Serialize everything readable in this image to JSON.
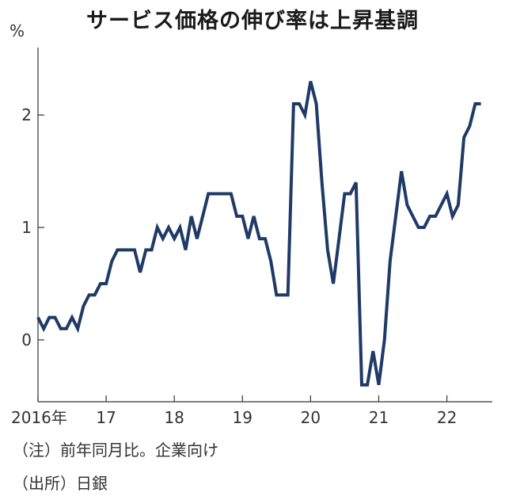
{
  "chart_data": {
    "type": "line",
    "title": "サービス価格の伸び率は上昇基調",
    "unit_label": "%",
    "xlabel": "",
    "ylabel": "",
    "xlim": [
      2016,
      2022.667
    ],
    "ylim": [
      -0.55,
      2.6
    ],
    "y_ticks": [
      0,
      1,
      2
    ],
    "x_ticks": [
      {
        "value": 2016,
        "label": "2016年"
      },
      {
        "value": 2017,
        "label": "17"
      },
      {
        "value": 2018,
        "label": "18"
      },
      {
        "value": 2019,
        "label": "19"
      },
      {
        "value": 2020,
        "label": "20"
      },
      {
        "value": 2021,
        "label": "21"
      },
      {
        "value": 2022,
        "label": "22"
      }
    ],
    "grid": false,
    "legend": "none",
    "line_color": "#1f3a66",
    "series": [
      {
        "x": [
          "2016-01",
          "2016-02",
          "2016-03",
          "2016-04",
          "2016-05",
          "2016-06",
          "2016-07",
          "2016-08",
          "2016-09",
          "2016-10",
          "2016-11",
          "2016-12",
          "2017-01",
          "2017-02",
          "2017-03",
          "2017-04",
          "2017-05",
          "2017-06",
          "2017-07",
          "2017-08",
          "2017-09",
          "2017-10",
          "2017-11",
          "2017-12",
          "2018-01",
          "2018-02",
          "2018-03",
          "2018-04",
          "2018-05",
          "2018-06",
          "2018-07",
          "2018-08",
          "2018-09",
          "2018-10",
          "2018-11",
          "2018-12",
          "2019-01",
          "2019-02",
          "2019-03",
          "2019-04",
          "2019-05",
          "2019-06",
          "2019-07",
          "2019-08",
          "2019-09",
          "2019-10",
          "2019-11",
          "2019-12",
          "2020-01",
          "2020-02",
          "2020-03",
          "2020-04",
          "2020-05",
          "2020-06",
          "2020-07",
          "2020-08",
          "2020-09",
          "2020-10",
          "2020-11",
          "2020-12",
          "2021-01",
          "2021-02",
          "2021-03",
          "2021-04",
          "2021-05",
          "2021-06",
          "2021-07",
          "2021-08",
          "2021-09",
          "2021-10",
          "2021-11",
          "2021-12",
          "2022-01",
          "2022-02",
          "2022-03",
          "2022-04",
          "2022-05",
          "2022-06",
          "2022-07"
        ],
        "values": [
          0.2,
          0.1,
          0.2,
          0.2,
          0.1,
          0.1,
          0.2,
          0.1,
          0.3,
          0.4,
          0.4,
          0.5,
          0.5,
          0.7,
          0.8,
          0.8,
          0.8,
          0.8,
          0.6,
          0.8,
          0.8,
          1.0,
          0.9,
          1.0,
          0.9,
          1.0,
          0.8,
          1.1,
          0.9,
          1.1,
          1.3,
          1.3,
          1.3,
          1.3,
          1.3,
          1.1,
          1.1,
          0.9,
          1.1,
          0.9,
          0.9,
          0.7,
          0.4,
          0.4,
          0.4,
          2.1,
          2.1,
          2.0,
          2.3,
          2.1,
          1.4,
          0.8,
          0.5,
          0.9,
          1.3,
          1.3,
          1.4,
          -0.4,
          -0.4,
          -0.1,
          -0.4,
          0.0,
          0.7,
          1.1,
          1.5,
          1.2,
          1.1,
          1.0,
          1.0,
          1.1,
          1.1,
          1.2,
          1.3,
          1.1,
          1.2,
          1.8,
          1.9,
          2.1,
          2.1
        ]
      }
    ]
  },
  "notes": {
    "note_1": "（注）前年同月比。企業向け",
    "note_2": "（出所）日銀"
  }
}
